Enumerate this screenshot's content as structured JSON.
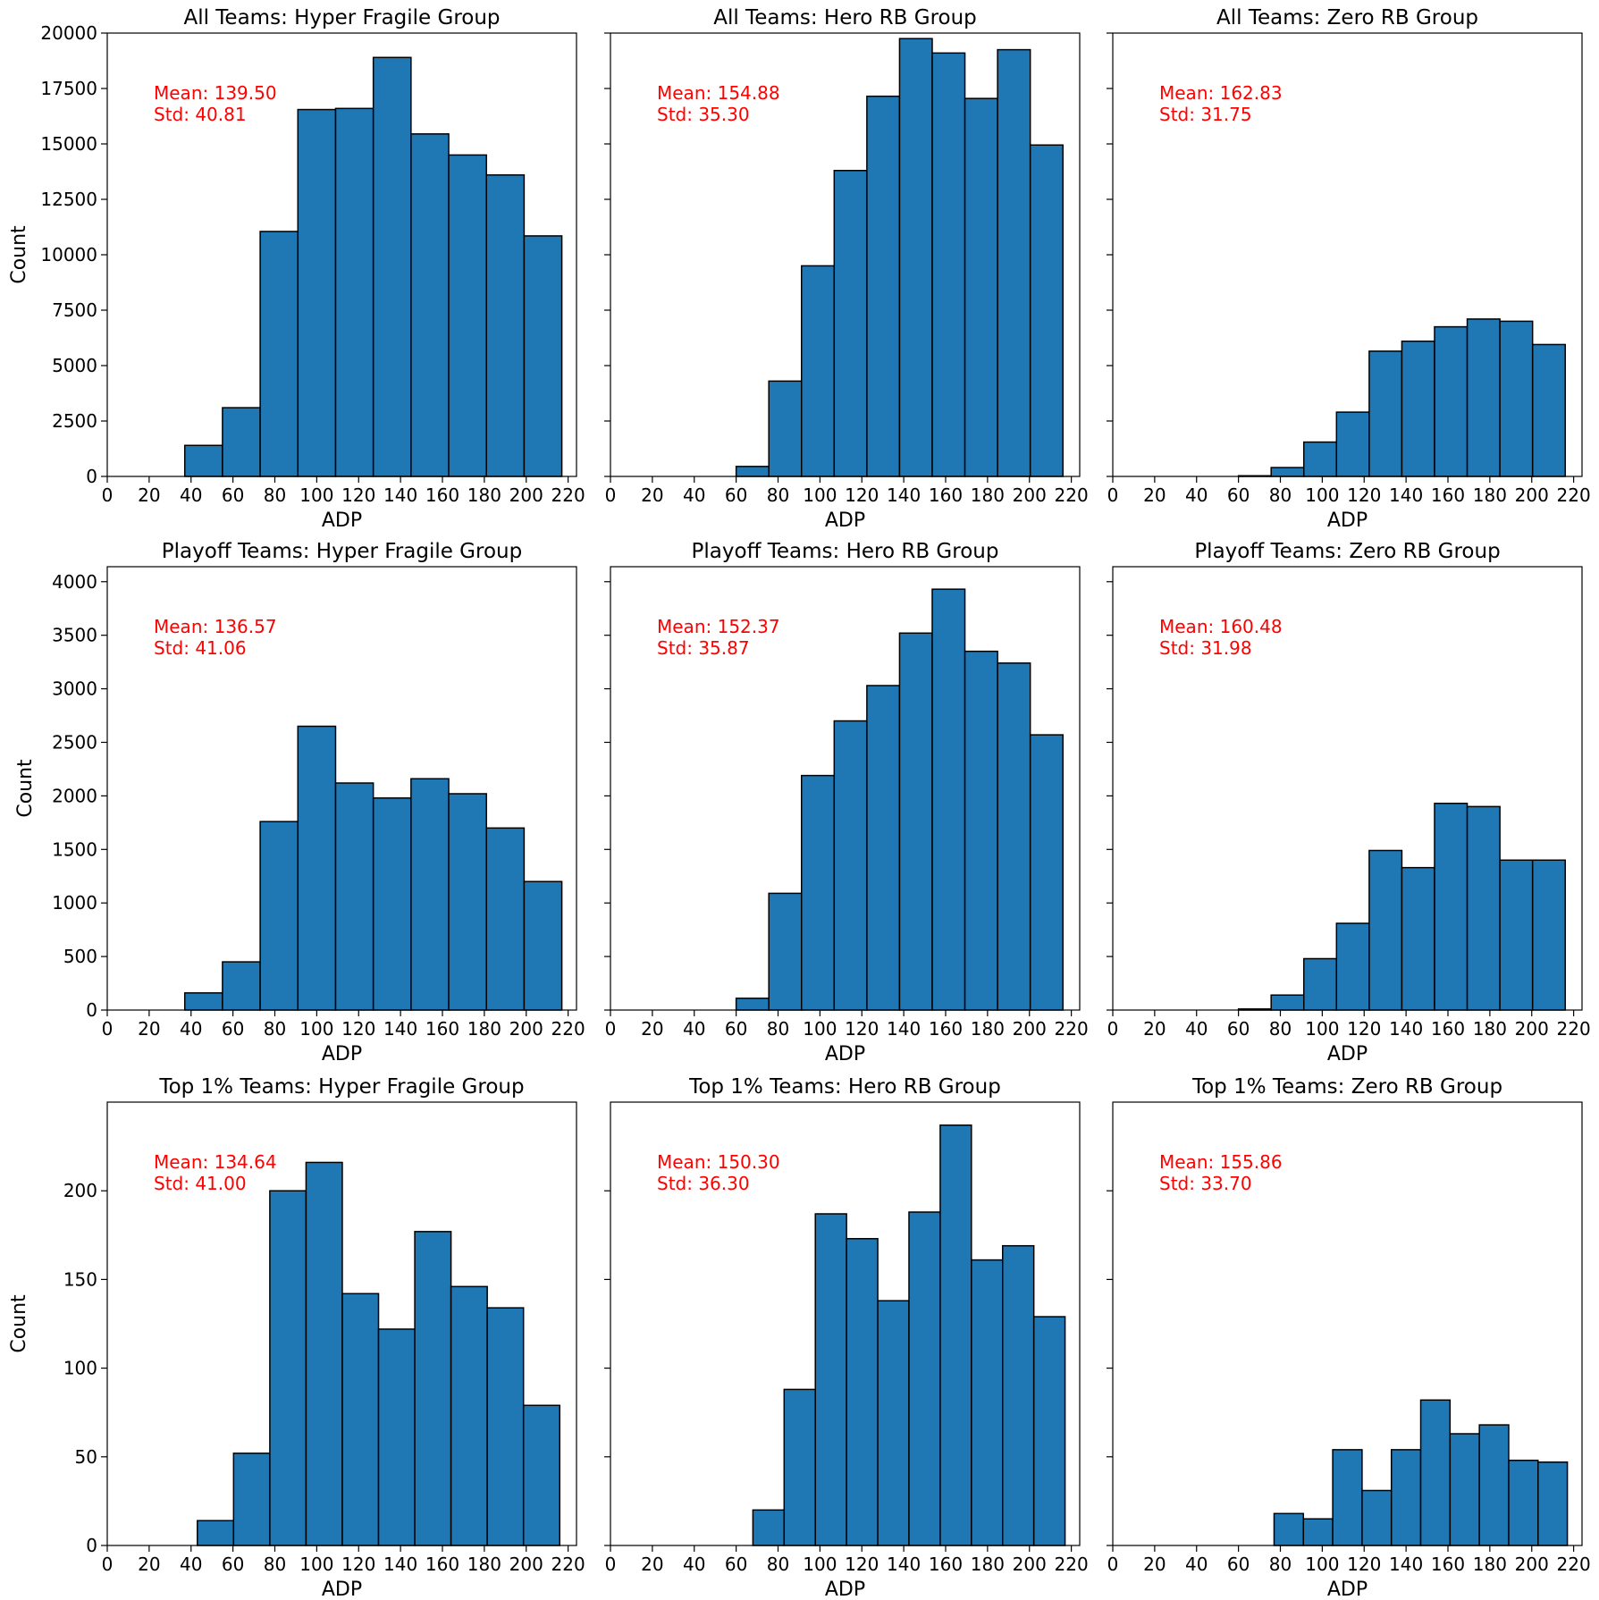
{
  "figure": {
    "background": "#ffffff",
    "bar_color": "#1f77b4",
    "edge_color": "#000000",
    "annotation_color": "#ff0000"
  },
  "chart_data": [
    {
      "type": "bar",
      "title": "All Teams: Hyper Fragile Group",
      "xlabel": "ADP",
      "ylabel": "Count",
      "xlim": [
        0,
        224
      ],
      "ylim": [
        0,
        20000
      ],
      "xticks": [
        "0",
        "20",
        "40",
        "60",
        "80",
        "100",
        "120",
        "140",
        "160",
        "180",
        "200",
        "220"
      ],
      "yticks": [
        "0",
        "2500",
        "5000",
        "7500",
        "10000",
        "12500",
        "15000",
        "17500",
        "20000"
      ],
      "bin_edges": [
        37,
        55,
        73,
        91,
        109,
        127,
        145,
        163,
        181,
        199,
        217
      ],
      "values": [
        1400,
        3100,
        11050,
        16550,
        16600,
        18900,
        15450,
        14500,
        13600,
        10850
      ],
      "annotation": [
        "Mean: 139.50",
        "Std: 40.81"
      ]
    },
    {
      "type": "bar",
      "title": "All Teams: Hero RB Group",
      "xlabel": "ADP",
      "ylabel": "",
      "xlim": [
        0,
        224
      ],
      "ylim": [
        0,
        20000
      ],
      "xticks": [
        "0",
        "20",
        "40",
        "60",
        "80",
        "100",
        "120",
        "140",
        "160",
        "180",
        "200",
        "220"
      ],
      "yticks": [],
      "bin_edges": [
        60,
        75.6,
        91.2,
        106.8,
        122.4,
        138,
        153.6,
        169.2,
        184.8,
        200.4,
        216
      ],
      "values": [
        450,
        4300,
        9500,
        13800,
        17150,
        19750,
        19100,
        17050,
        19250,
        14950
      ],
      "annotation": [
        "Mean: 154.88",
        "Std: 35.30"
      ]
    },
    {
      "type": "bar",
      "title": "All Teams: Zero RB Group",
      "xlabel": "ADP",
      "ylabel": "",
      "xlim": [
        0,
        224
      ],
      "ylim": [
        0,
        20000
      ],
      "xticks": [
        "0",
        "20",
        "40",
        "60",
        "80",
        "100",
        "120",
        "140",
        "160",
        "180",
        "200",
        "220"
      ],
      "yticks": [],
      "bin_edges": [
        60,
        75.6,
        91.2,
        106.8,
        122.4,
        138,
        153.6,
        169.2,
        184.8,
        200.4,
        216
      ],
      "values": [
        30,
        400,
        1550,
        2900,
        5650,
        6100,
        6750,
        7100,
        7000,
        5950
      ],
      "annotation": [
        "Mean: 162.83",
        "Std: 31.75"
      ]
    },
    {
      "type": "bar",
      "title": "Playoff Teams: Hyper Fragile Group",
      "xlabel": "ADP",
      "ylabel": "Count",
      "xlim": [
        0,
        224
      ],
      "ylim": [
        0,
        4140
      ],
      "xticks": [
        "0",
        "20",
        "40",
        "60",
        "80",
        "100",
        "120",
        "140",
        "160",
        "180",
        "200",
        "220"
      ],
      "yticks": [
        "0",
        "500",
        "1000",
        "1500",
        "2000",
        "2500",
        "3000",
        "3500",
        "4000"
      ],
      "bin_edges": [
        37,
        55,
        73,
        91,
        109,
        127,
        145,
        163,
        181,
        199,
        217
      ],
      "values": [
        160,
        450,
        1760,
        2650,
        2120,
        1980,
        2160,
        2020,
        1700,
        1200
      ],
      "annotation": [
        "Mean: 136.57",
        "Std: 41.06"
      ]
    },
    {
      "type": "bar",
      "title": "Playoff Teams: Hero RB Group",
      "xlabel": "ADP",
      "ylabel": "",
      "xlim": [
        0,
        224
      ],
      "ylim": [
        0,
        4140
      ],
      "xticks": [
        "0",
        "20",
        "40",
        "60",
        "80",
        "100",
        "120",
        "140",
        "160",
        "180",
        "200",
        "220"
      ],
      "yticks": [],
      "bin_edges": [
        60,
        75.6,
        91.2,
        106.8,
        122.4,
        138,
        153.6,
        169.2,
        184.8,
        200.4,
        216
      ],
      "values": [
        110,
        1090,
        2190,
        2700,
        3030,
        3520,
        3930,
        3350,
        3240,
        2570
      ],
      "annotation": [
        "Mean: 152.37",
        "Std: 35.87"
      ]
    },
    {
      "type": "bar",
      "title": "Playoff Teams: Zero RB Group",
      "xlabel": "ADP",
      "ylabel": "",
      "xlim": [
        0,
        224
      ],
      "ylim": [
        0,
        4140
      ],
      "xticks": [
        "0",
        "20",
        "40",
        "60",
        "80",
        "100",
        "120",
        "140",
        "160",
        "180",
        "200",
        "220"
      ],
      "yticks": [],
      "bin_edges": [
        60,
        75.6,
        91.2,
        106.8,
        122.4,
        138,
        153.6,
        169.2,
        184.8,
        200.4,
        216
      ],
      "values": [
        10,
        140,
        480,
        810,
        1490,
        1330,
        1930,
        1900,
        1400,
        1400
      ],
      "annotation": [
        "Mean: 160.48",
        "Std: 31.98"
      ]
    },
    {
      "type": "bar",
      "title": "Top 1% Teams: Hyper Fragile Group",
      "xlabel": "ADP",
      "ylabel": "Count",
      "xlim": [
        0,
        224
      ],
      "ylim": [
        0,
        250
      ],
      "xticks": [
        "0",
        "20",
        "40",
        "60",
        "80",
        "100",
        "120",
        "140",
        "160",
        "180",
        "200",
        "220"
      ],
      "yticks": [
        "0",
        "50",
        "100",
        "150",
        "200"
      ],
      "bin_edges": [
        43,
        60.3,
        77.6,
        94.9,
        112.2,
        129.5,
        146.8,
        164.1,
        181.4,
        198.7,
        216
      ],
      "values": [
        14,
        52,
        200,
        216,
        142,
        122,
        177,
        146,
        134,
        79
      ],
      "annotation": [
        "Mean: 134.64",
        "Std: 41.00"
      ]
    },
    {
      "type": "bar",
      "title": "Top 1% Teams: Hero RB Group",
      "xlabel": "ADP",
      "ylabel": "",
      "xlim": [
        0,
        224
      ],
      "ylim": [
        0,
        250
      ],
      "xticks": [
        "0",
        "20",
        "40",
        "60",
        "80",
        "100",
        "120",
        "140",
        "160",
        "180",
        "200",
        "220"
      ],
      "yticks": [],
      "bin_edges": [
        68,
        82.9,
        97.8,
        112.7,
        127.6,
        142.5,
        157.4,
        172.3,
        187.2,
        202.1,
        217
      ],
      "values": [
        20,
        88,
        187,
        173,
        138,
        188,
        237,
        161,
        169,
        129
      ],
      "annotation": [
        "Mean: 150.30",
        "Std: 36.30"
      ]
    },
    {
      "type": "bar",
      "title": "Top 1% Teams: Zero RB Group",
      "xlabel": "ADP",
      "ylabel": "",
      "xlim": [
        0,
        224
      ],
      "ylim": [
        0,
        250
      ],
      "xticks": [
        "0",
        "20",
        "40",
        "60",
        "80",
        "100",
        "120",
        "140",
        "160",
        "180",
        "200",
        "220"
      ],
      "yticks": [],
      "bin_edges": [
        77,
        91,
        105,
        119,
        133,
        147,
        161,
        175,
        189,
        203,
        217
      ],
      "values": [
        18,
        15,
        54,
        31,
        54,
        82,
        63,
        68,
        48,
        47
      ],
      "annotation": [
        "Mean: 155.86",
        "Std: 33.70"
      ]
    }
  ]
}
